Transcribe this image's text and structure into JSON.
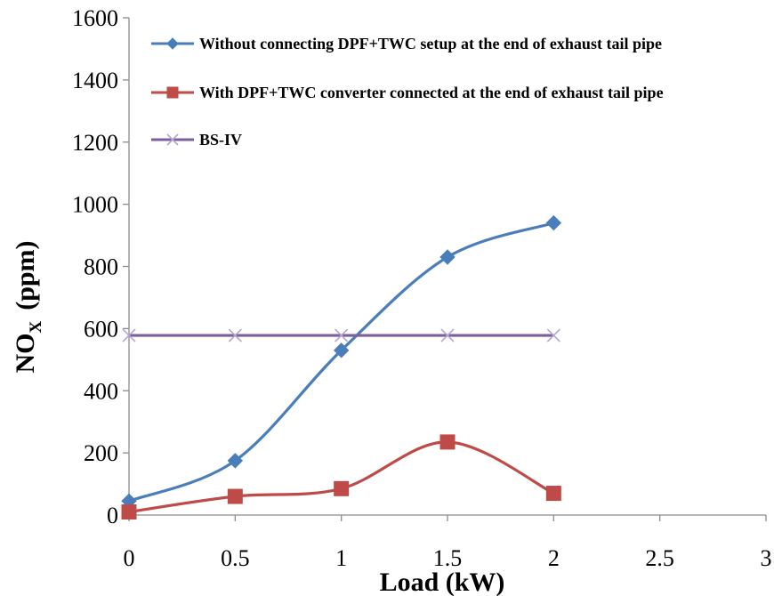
{
  "chart_data": {
    "type": "line",
    "title": "",
    "xlabel": "Load (kW)",
    "ylabel": {
      "main": "NO",
      "sub": "X",
      "unit": "(ppm)"
    },
    "xlim": [
      0,
      3
    ],
    "ylim": [
      0,
      1600
    ],
    "xticks": [
      0,
      0.5,
      1,
      1.5,
      2,
      2.5,
      3
    ],
    "xtick_labels": [
      "0",
      "0.5",
      "1",
      "1.5",
      "2",
      "2.5",
      "3"
    ],
    "yticks": [
      0,
      200,
      400,
      600,
      800,
      1000,
      1200,
      1400,
      1600
    ],
    "ytick_labels": [
      "0",
      "200",
      "400",
      "600",
      "800",
      "1000",
      "1200",
      "1400",
      "1600"
    ],
    "grid": false,
    "legend_position": "top-left",
    "series": [
      {
        "name": "Without connecting DPF+TWC setup at the end of exhaust tail pipe",
        "color": "#4a7ebb",
        "marker": "diamond",
        "smooth": true,
        "x": [
          0,
          0.5,
          1,
          1.5,
          2
        ],
        "y": [
          45,
          175,
          530,
          830,
          940
        ]
      },
      {
        "name": "With DPF+TWC converter connected at the end of exhaust tail pipe",
        "color": "#be4b48",
        "marker": "square",
        "smooth": true,
        "x": [
          0,
          0.5,
          1,
          1.5,
          2
        ],
        "y": [
          10,
          60,
          85,
          235,
          70
        ]
      },
      {
        "name": "BS-IV",
        "color": "#7d5fa0",
        "marker": "x",
        "smooth": false,
        "x": [
          0,
          0.5,
          1,
          1.5,
          2
        ],
        "y": [
          578,
          578,
          578,
          578,
          578
        ]
      }
    ]
  }
}
